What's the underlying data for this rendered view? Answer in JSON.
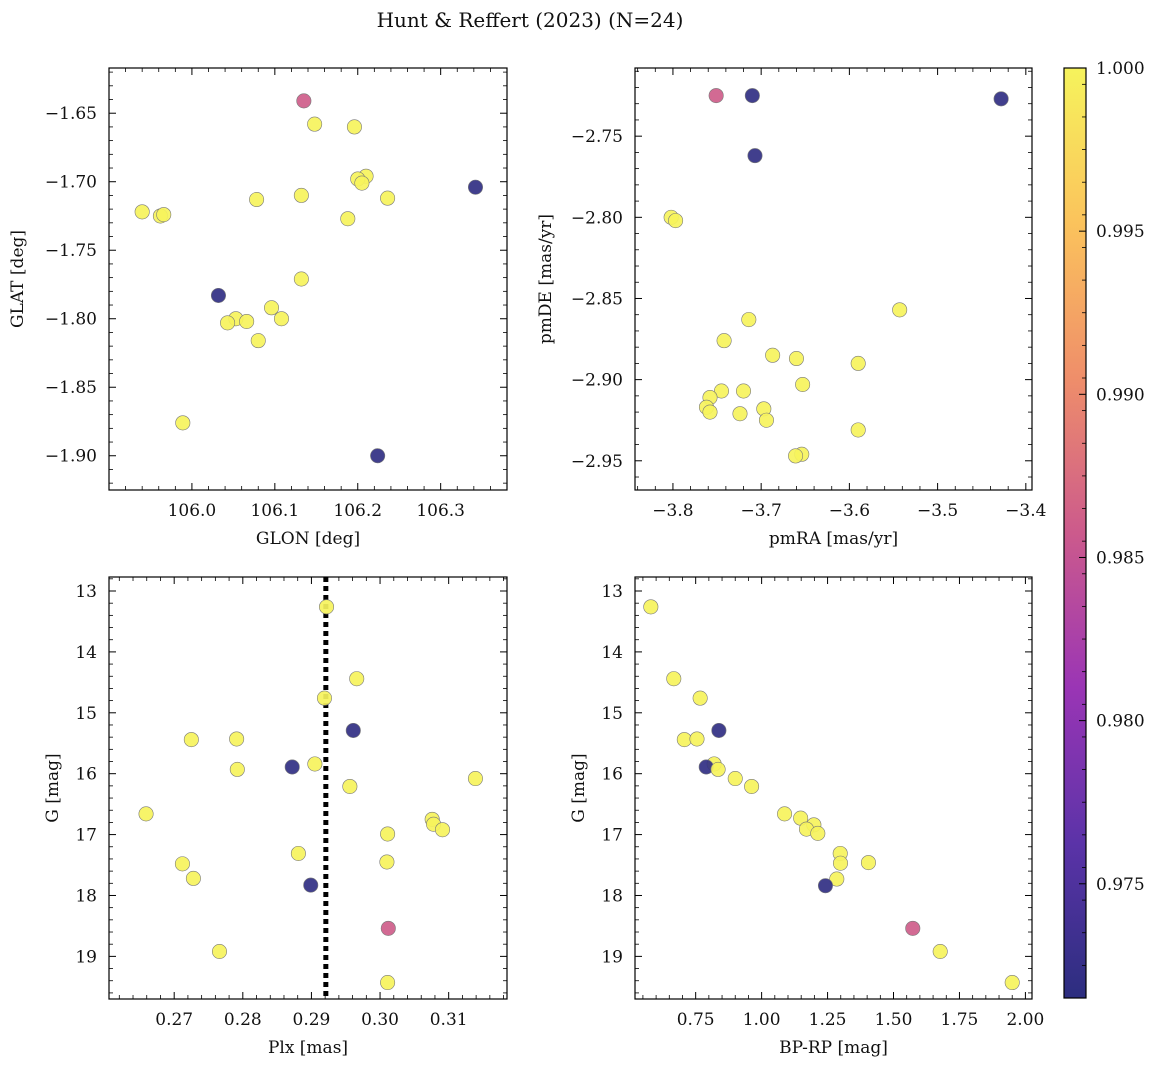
{
  "title": "Hunt & Reffert (2023) (N=24)",
  "colorbar": {
    "range": [
      0.9715,
      1.0
    ],
    "ticks": [
      0.975,
      0.98,
      0.985,
      0.99,
      0.995,
      1.0
    ],
    "tick_labels": [
      "0.975",
      "0.980",
      "0.985",
      "0.990",
      "0.995",
      "1.000"
    ],
    "colormap": [
      "#2c2e7f",
      "#5b33a8",
      "#9a35b5",
      "#cc5a8c",
      "#ef8e6a",
      "#fbc35c",
      "#f6f35c"
    ]
  },
  "chart_data": [
    {
      "type": "scatter",
      "name": "glon-glat",
      "xlabel": "GLON [deg]",
      "ylabel": "GLAT [deg]",
      "xlim": [
        105.9,
        106.38
      ],
      "ylim": [
        -1.925,
        -1.617
      ],
      "y_inverted": false,
      "xticks": [
        106.0,
        106.1,
        106.2,
        106.3
      ],
      "xtick_labels": [
        "106.0",
        "106.1",
        "106.2",
        "106.3"
      ],
      "yticks": [
        -1.65,
        -1.7,
        -1.75,
        -1.8,
        -1.85,
        -1.9
      ],
      "ytick_labels": [
        "−1.65",
        "−1.70",
        "−1.75",
        "−1.80",
        "−1.85",
        "−1.90"
      ],
      "points": [
        {
          "x": 106.135,
          "y": -1.641,
          "c": 0.986
        },
        {
          "x": 106.148,
          "y": -1.658,
          "c": 1.0
        },
        {
          "x": 106.196,
          "y": -1.66,
          "c": 1.0
        },
        {
          "x": 106.342,
          "y": -1.704,
          "c": 0.972
        },
        {
          "x": 106.21,
          "y": -1.696,
          "c": 1.0
        },
        {
          "x": 106.2,
          "y": -1.698,
          "c": 1.0
        },
        {
          "x": 106.205,
          "y": -1.701,
          "c": 1.0
        },
        {
          "x": 106.132,
          "y": -1.71,
          "c": 1.0
        },
        {
          "x": 106.236,
          "y": -1.712,
          "c": 1.0
        },
        {
          "x": 106.078,
          "y": -1.713,
          "c": 1.0
        },
        {
          "x": 105.94,
          "y": -1.722,
          "c": 1.0
        },
        {
          "x": 105.962,
          "y": -1.725,
          "c": 1.0
        },
        {
          "x": 105.966,
          "y": -1.724,
          "c": 1.0
        },
        {
          "x": 106.188,
          "y": -1.727,
          "c": 1.0
        },
        {
          "x": 106.132,
          "y": -1.771,
          "c": 1.0
        },
        {
          "x": 106.032,
          "y": -1.783,
          "c": 0.972
        },
        {
          "x": 106.096,
          "y": -1.792,
          "c": 1.0
        },
        {
          "x": 106.108,
          "y": -1.8,
          "c": 1.0
        },
        {
          "x": 106.053,
          "y": -1.8,
          "c": 1.0
        },
        {
          "x": 106.043,
          "y": -1.803,
          "c": 1.0
        },
        {
          "x": 106.066,
          "y": -1.802,
          "c": 1.0
        },
        {
          "x": 106.08,
          "y": -1.816,
          "c": 1.0
        },
        {
          "x": 105.989,
          "y": -1.876,
          "c": 1.0
        },
        {
          "x": 106.224,
          "y": -1.9,
          "c": 0.972
        }
      ]
    },
    {
      "type": "scatter",
      "name": "pmra-pmde",
      "xlabel": "pmRA [mas/yr]",
      "ylabel": "pmDE [mas/yr]",
      "xlim": [
        -3.843,
        -3.393
      ],
      "ylim": [
        -2.968,
        -2.708
      ],
      "y_inverted": false,
      "xticks": [
        -3.8,
        -3.7,
        -3.6,
        -3.5,
        -3.4
      ],
      "xtick_labels": [
        "−3.8",
        "−3.7",
        "−3.6",
        "−3.5",
        "−3.4"
      ],
      "yticks": [
        -2.75,
        -2.8,
        -2.85,
        -2.9,
        -2.95
      ],
      "ytick_labels": [
        "−2.75",
        "−2.80",
        "−2.85",
        "−2.90",
        "−2.95"
      ],
      "points": [
        {
          "x": -3.751,
          "y": -2.725,
          "c": 0.986
        },
        {
          "x": -3.71,
          "y": -2.725,
          "c": 0.972
        },
        {
          "x": -3.428,
          "y": -2.727,
          "c": 0.972
        },
        {
          "x": -3.707,
          "y": -2.762,
          "c": 0.972
        },
        {
          "x": -3.802,
          "y": -2.8,
          "c": 1.0
        },
        {
          "x": -3.797,
          "y": -2.802,
          "c": 1.0
        },
        {
          "x": -3.543,
          "y": -2.857,
          "c": 1.0
        },
        {
          "x": -3.714,
          "y": -2.863,
          "c": 1.0
        },
        {
          "x": -3.742,
          "y": -2.876,
          "c": 1.0
        },
        {
          "x": -3.687,
          "y": -2.885,
          "c": 1.0
        },
        {
          "x": -3.66,
          "y": -2.887,
          "c": 1.0
        },
        {
          "x": -3.59,
          "y": -2.89,
          "c": 1.0
        },
        {
          "x": -3.653,
          "y": -2.903,
          "c": 1.0
        },
        {
          "x": -3.745,
          "y": -2.907,
          "c": 1.0
        },
        {
          "x": -3.72,
          "y": -2.907,
          "c": 1.0
        },
        {
          "x": -3.758,
          "y": -2.911,
          "c": 1.0
        },
        {
          "x": -3.762,
          "y": -2.917,
          "c": 1.0
        },
        {
          "x": -3.697,
          "y": -2.918,
          "c": 1.0
        },
        {
          "x": -3.758,
          "y": -2.92,
          "c": 1.0
        },
        {
          "x": -3.724,
          "y": -2.921,
          "c": 1.0
        },
        {
          "x": -3.694,
          "y": -2.925,
          "c": 1.0
        },
        {
          "x": -3.59,
          "y": -2.931,
          "c": 1.0
        },
        {
          "x": -3.654,
          "y": -2.946,
          "c": 1.0
        },
        {
          "x": -3.661,
          "y": -2.947,
          "c": 1.0
        }
      ]
    },
    {
      "type": "scatter",
      "name": "plx-g",
      "xlabel": "Plx [mas]",
      "ylabel": "G [mag]",
      "xlim": [
        0.2605,
        0.3185
      ],
      "ylim": [
        12.77,
        19.7
      ],
      "y_inverted": true,
      "xticks": [
        0.27,
        0.28,
        0.29,
        0.3,
        0.31
      ],
      "xtick_labels": [
        "0.27",
        "0.28",
        "0.29",
        "0.30",
        "0.31"
      ],
      "yticks": [
        13,
        14,
        15,
        16,
        17,
        18,
        19
      ],
      "ytick_labels": [
        "13",
        "14",
        "15",
        "16",
        "17",
        "18",
        "19"
      ],
      "vline": 0.2921,
      "points": [
        {
          "x": 0.2922,
          "y": 13.26,
          "c": 1.0
        },
        {
          "x": 0.2966,
          "y": 14.44,
          "c": 1.0
        },
        {
          "x": 0.2919,
          "y": 14.76,
          "c": 1.0
        },
        {
          "x": 0.2961,
          "y": 15.29,
          "c": 0.972
        },
        {
          "x": 0.2725,
          "y": 15.44,
          "c": 1.0
        },
        {
          "x": 0.2791,
          "y": 15.43,
          "c": 1.0
        },
        {
          "x": 0.2905,
          "y": 15.84,
          "c": 1.0
        },
        {
          "x": 0.2872,
          "y": 15.89,
          "c": 0.972
        },
        {
          "x": 0.2792,
          "y": 15.93,
          "c": 1.0
        },
        {
          "x": 0.3139,
          "y": 16.08,
          "c": 1.0
        },
        {
          "x": 0.2956,
          "y": 16.21,
          "c": 1.0
        },
        {
          "x": 0.2659,
          "y": 16.66,
          "c": 1.0
        },
        {
          "x": 0.3076,
          "y": 16.75,
          "c": 1.0
        },
        {
          "x": 0.3078,
          "y": 16.83,
          "c": 1.0
        },
        {
          "x": 0.3091,
          "y": 16.92,
          "c": 1.0
        },
        {
          "x": 0.3011,
          "y": 16.99,
          "c": 1.0
        },
        {
          "x": 0.2881,
          "y": 17.31,
          "c": 1.0
        },
        {
          "x": 0.301,
          "y": 17.45,
          "c": 1.0
        },
        {
          "x": 0.2712,
          "y": 17.48,
          "c": 1.0
        },
        {
          "x": 0.2728,
          "y": 17.72,
          "c": 1.0
        },
        {
          "x": 0.2899,
          "y": 17.83,
          "c": 0.972
        },
        {
          "x": 0.3012,
          "y": 18.54,
          "c": 0.986
        },
        {
          "x": 0.2766,
          "y": 18.92,
          "c": 1.0
        },
        {
          "x": 0.3011,
          "y": 19.43,
          "c": 1.0
        }
      ]
    },
    {
      "type": "scatter",
      "name": "bprp-g",
      "xlabel": "BP-RP [mag]",
      "ylabel": "G [mag]",
      "xlim": [
        0.52,
        2.025
      ],
      "ylim": [
        12.77,
        19.7
      ],
      "y_inverted": true,
      "xticks": [
        0.75,
        1.0,
        1.25,
        1.5,
        1.75,
        2.0
      ],
      "xtick_labels": [
        "0.75",
        "1.00",
        "1.25",
        "1.50",
        "1.75",
        "2.00"
      ],
      "yticks": [
        13,
        14,
        15,
        16,
        17,
        18,
        19
      ],
      "ytick_labels": [
        "13",
        "14",
        "15",
        "16",
        "17",
        "18",
        "19"
      ],
      "points": [
        {
          "x": 0.58,
          "y": 13.26,
          "c": 1.0
        },
        {
          "x": 0.667,
          "y": 14.44,
          "c": 1.0
        },
        {
          "x": 0.767,
          "y": 14.76,
          "c": 1.0
        },
        {
          "x": 0.838,
          "y": 15.29,
          "c": 0.972
        },
        {
          "x": 0.707,
          "y": 15.44,
          "c": 1.0
        },
        {
          "x": 0.755,
          "y": 15.43,
          "c": 1.0
        },
        {
          "x": 0.82,
          "y": 15.84,
          "c": 1.0
        },
        {
          "x": 0.79,
          "y": 15.89,
          "c": 0.972
        },
        {
          "x": 0.835,
          "y": 15.93,
          "c": 1.0
        },
        {
          "x": 0.9,
          "y": 16.08,
          "c": 1.0
        },
        {
          "x": 0.962,
          "y": 16.21,
          "c": 1.0
        },
        {
          "x": 1.087,
          "y": 16.66,
          "c": 1.0
        },
        {
          "x": 1.148,
          "y": 16.73,
          "c": 1.0
        },
        {
          "x": 1.198,
          "y": 16.84,
          "c": 1.0
        },
        {
          "x": 1.17,
          "y": 16.91,
          "c": 1.0
        },
        {
          "x": 1.213,
          "y": 16.98,
          "c": 1.0
        },
        {
          "x": 1.298,
          "y": 17.31,
          "c": 1.0
        },
        {
          "x": 1.299,
          "y": 17.47,
          "c": 1.0
        },
        {
          "x": 1.405,
          "y": 17.46,
          "c": 1.0
        },
        {
          "x": 1.285,
          "y": 17.73,
          "c": 1.0
        },
        {
          "x": 1.242,
          "y": 17.84,
          "c": 0.972
        },
        {
          "x": 1.573,
          "y": 18.54,
          "c": 0.986
        },
        {
          "x": 1.677,
          "y": 18.92,
          "c": 1.0
        },
        {
          "x": 1.95,
          "y": 19.43,
          "c": 1.0
        }
      ]
    }
  ]
}
